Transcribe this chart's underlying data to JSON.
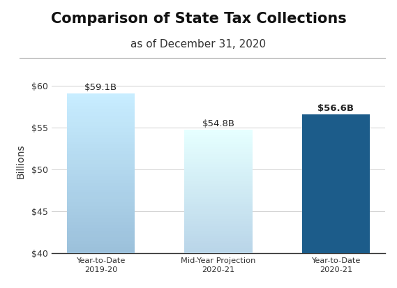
{
  "title": "Comparison of State Tax Collections",
  "subtitle": "as of December 31, 2020",
  "categories": [
    "Year-to-Date\n2019-20",
    "Mid-Year Projection\n2020-21",
    "Year-to-Date\n2020-21"
  ],
  "values": [
    59.1,
    54.8,
    56.6
  ],
  "bar_colors": [
    "#9abfda",
    "#b8d4e8",
    "#1c5c8a"
  ],
  "bar_labels": [
    "$59.1B",
    "$54.8B",
    "$56.6B"
  ],
  "label_bold": [
    false,
    false,
    true
  ],
  "ylabel": "Billions",
  "ylim": [
    40,
    62.0
  ],
  "yticks": [
    40,
    45,
    50,
    55,
    60
  ],
  "ytick_labels": [
    "$40",
    "$45",
    "$50",
    "$55",
    "$60"
  ],
  "background_color": "#ffffff",
  "title_fontsize": 15,
  "subtitle_fontsize": 11,
  "bar_width": 0.58,
  "grid_color": "#d0d0d0",
  "spine_color": "#333333"
}
